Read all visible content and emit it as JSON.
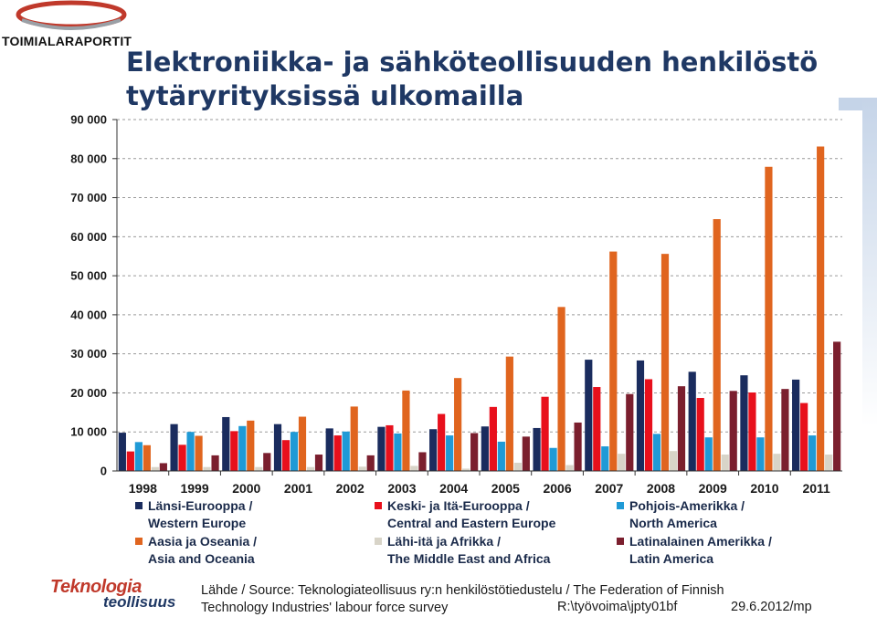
{
  "brand": {
    "name": "TOIMIALARAPORTIT",
    "logo_color": "#c0392b"
  },
  "title": {
    "line1": "Elektroniikka- ja sähköteollisuuden henkilöstö",
    "line2": "tytäryrityksissä ulkomailla"
  },
  "chart_data": {
    "type": "bar",
    "categories": [
      "1998",
      "1999",
      "2000",
      "2001",
      "2002",
      "2003",
      "2004",
      "2005",
      "2006",
      "2007",
      "2008",
      "2009",
      "2010",
      "2011"
    ],
    "ylim": [
      0,
      90000
    ],
    "yticks": [
      "0",
      "10 000",
      "20 000",
      "30 000",
      "40 000",
      "50 000",
      "60 000",
      "70 000",
      "80 000",
      "90 000"
    ],
    "grid": "dashed horizontal",
    "legend_position": "bottom",
    "series": [
      {
        "name": "Länsi-Eurooppa / Western Europe",
        "name_fi": "Länsi-Eurooppa /",
        "name_en": "Western Europe",
        "color": "#1a2c5e",
        "values": [
          9800,
          12000,
          13800,
          12000,
          10900,
          11300,
          10700,
          11400,
          11000,
          28500,
          28300,
          25400,
          24500,
          23400
        ]
      },
      {
        "name": "Keski- ja Itä-Eurooppa / Central and Eastern Europe",
        "name_fi": "Keski- ja Itä-Eurooppa /",
        "name_en": "Central and Eastern Europe",
        "color": "#e8101c",
        "values": [
          5000,
          6700,
          10200,
          7900,
          9100,
          11700,
          14600,
          16400,
          19000,
          21500,
          23500,
          18700,
          20100,
          17400
        ]
      },
      {
        "name": "Pohjois-Amerikka / North America",
        "name_fi": "Pohjois-Amerikka /",
        "name_en": "North America",
        "color": "#1f9ad6",
        "values": [
          7400,
          10000,
          11500,
          10000,
          10100,
          9600,
          9100,
          7500,
          5900,
          6300,
          9500,
          8600,
          8600,
          9100
        ]
      },
      {
        "name": "Aasia ja Oseania / Asia and Oceania",
        "name_fi": "Aasia ja Oseania /",
        "name_en": "Asia and Oceania",
        "color": "#e0651f",
        "values": [
          6600,
          9000,
          12900,
          13900,
          16500,
          20600,
          23800,
          29300,
          42000,
          56200,
          55600,
          64500,
          77900,
          83100
        ]
      },
      {
        "name": "Lähi-itä ja Afrikka / The Middle East and Africa",
        "name_fi": "Lähi-itä ja Afrikka /",
        "name_en": "The Middle East and Africa",
        "color": "#d8d4c8",
        "values": [
          1000,
          1000,
          1000,
          1000,
          1100,
          1300,
          600,
          2100,
          1500,
          4400,
          5100,
          4200,
          4400,
          4200
        ]
      },
      {
        "name": "Latinalainen Amerikka / Latin America",
        "name_fi": "Latinalainen Amerikka /",
        "name_en": "Latin America",
        "color": "#7b1f2e",
        "values": [
          2000,
          4000,
          4600,
          4200,
          4000,
          4800,
          9700,
          8800,
          12400,
          19700,
          21700,
          20500,
          21000,
          33100
        ]
      }
    ]
  },
  "footer": {
    "logo_line1": "Teknologia",
    "logo_line2": "teollisuus",
    "source_line1": "Lähde / Source: Teknologiateollisuus ry:n henkilöstötiedustelu / The Federation of Finnish",
    "source_line2": "Technology Industries' labour force survey",
    "ref": "R:\\työvoima\\jpty01bf",
    "date": "29.6.2012/mp"
  }
}
